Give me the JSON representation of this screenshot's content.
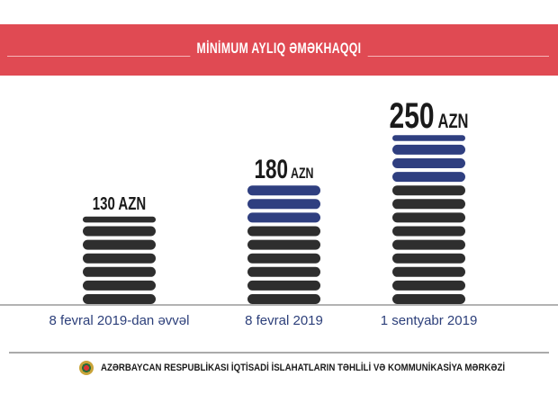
{
  "header": {
    "title": "MİNİMUM AYLIQ ƏMƏKHAQQI"
  },
  "chart_data": {
    "type": "bar",
    "title": "MİNİMUM AYLIQ ƏMƏKHAQQI",
    "categories": [
      "8 fevral 2019-dan əvvəl",
      "8 fevral 2019",
      "1 sentyabr 2019"
    ],
    "values": [
      130,
      180,
      250
    ],
    "value_labels": [
      "130 AZN",
      "180 AZN",
      "250 AZN"
    ],
    "unit": "AZN",
    "colors": {
      "base": "#2e2e2e",
      "increase": "#2f3f80"
    },
    "xlabel": "",
    "ylabel": "",
    "grid": false
  },
  "footer": {
    "organization": "AZƏRBAYCAN RESPUBLİKASI İQTİSADİ İSLAHATLARIN TƏHLİLİ VƏ KOMMUNİKASİYA MƏRKƏZİ"
  }
}
